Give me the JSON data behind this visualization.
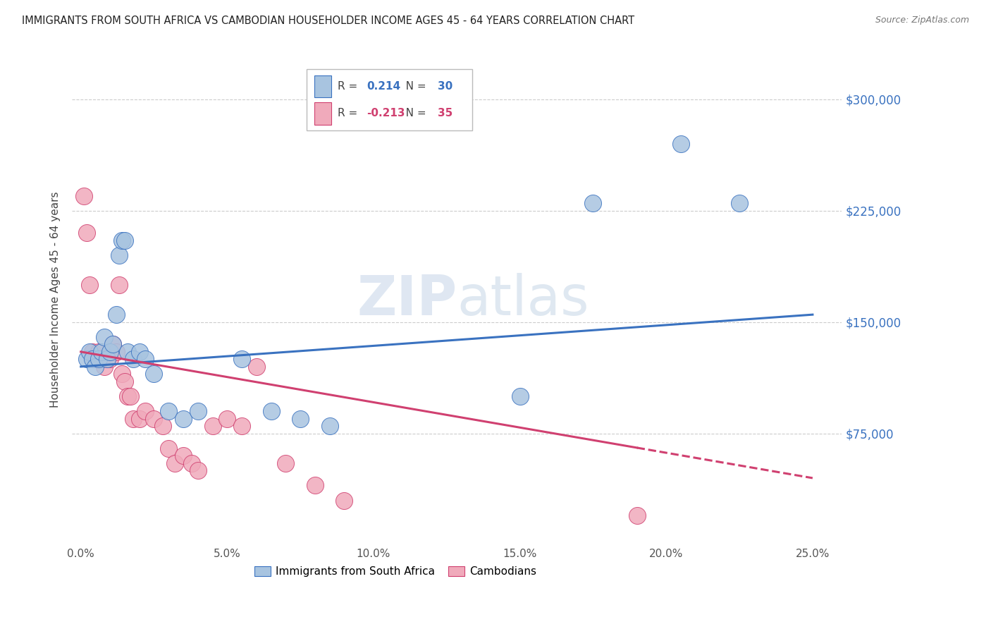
{
  "title": "IMMIGRANTS FROM SOUTH AFRICA VS CAMBODIAN HOUSEHOLDER INCOME AGES 45 - 64 YEARS CORRELATION CHART",
  "source": "Source: ZipAtlas.com",
  "xlabel_ticks": [
    "0.0%",
    "5.0%",
    "10.0%",
    "15.0%",
    "20.0%",
    "25.0%"
  ],
  "xlabel_vals": [
    0.0,
    5.0,
    10.0,
    15.0,
    20.0,
    25.0
  ],
  "ylabel": "Householder Income Ages 45 - 64 years",
  "ylabel_ticks": [
    "$75,000",
    "$150,000",
    "$225,000",
    "$300,000"
  ],
  "ylabel_vals": [
    75000,
    150000,
    225000,
    300000
  ],
  "ylim": [
    0,
    330000
  ],
  "xlim": [
    -0.3,
    26.0
  ],
  "blue_label": "Immigrants from South Africa",
  "pink_label": "Cambodians",
  "blue_R": "0.214",
  "blue_N": "30",
  "pink_R": "-0.213",
  "pink_N": "35",
  "blue_color": "#a8c4e0",
  "pink_color": "#f0aabb",
  "blue_line_color": "#3a72c0",
  "pink_line_color": "#d04070",
  "blue_trend_x0": 0.0,
  "blue_trend_y0": 120000,
  "blue_trend_x1": 25.0,
  "blue_trend_y1": 155000,
  "pink_trend_x0": 0.0,
  "pink_trend_y0": 130000,
  "pink_trend_x1": 25.0,
  "pink_trend_y1": 45000,
  "pink_solid_end": 19.0,
  "blue_dots_x": [
    0.2,
    0.3,
    0.4,
    0.5,
    0.6,
    0.7,
    0.8,
    0.9,
    1.0,
    1.1,
    1.2,
    1.3,
    1.4,
    1.5,
    1.6,
    1.8,
    2.0,
    2.2,
    2.5,
    3.0,
    3.5,
    4.0,
    5.5,
    6.5,
    7.5,
    8.5,
    15.0,
    17.5,
    20.5,
    22.5
  ],
  "blue_dots_y": [
    125000,
    130000,
    125000,
    120000,
    125000,
    130000,
    140000,
    125000,
    130000,
    135000,
    155000,
    195000,
    205000,
    205000,
    130000,
    125000,
    130000,
    125000,
    115000,
    90000,
    85000,
    90000,
    125000,
    90000,
    85000,
    80000,
    100000,
    230000,
    270000,
    230000
  ],
  "pink_dots_x": [
    0.1,
    0.2,
    0.3,
    0.4,
    0.5,
    0.6,
    0.7,
    0.8,
    0.9,
    1.0,
    1.1,
    1.2,
    1.3,
    1.4,
    1.5,
    1.6,
    1.7,
    1.8,
    2.0,
    2.2,
    2.5,
    2.8,
    3.0,
    3.2,
    3.5,
    3.8,
    4.0,
    4.5,
    5.0,
    5.5,
    6.0,
    7.0,
    8.0,
    9.0,
    19.0
  ],
  "pink_dots_y": [
    235000,
    210000,
    175000,
    130000,
    125000,
    130000,
    125000,
    120000,
    125000,
    125000,
    135000,
    130000,
    175000,
    115000,
    110000,
    100000,
    100000,
    85000,
    85000,
    90000,
    85000,
    80000,
    65000,
    55000,
    60000,
    55000,
    50000,
    80000,
    85000,
    80000,
    120000,
    55000,
    40000,
    30000,
    20000
  ]
}
